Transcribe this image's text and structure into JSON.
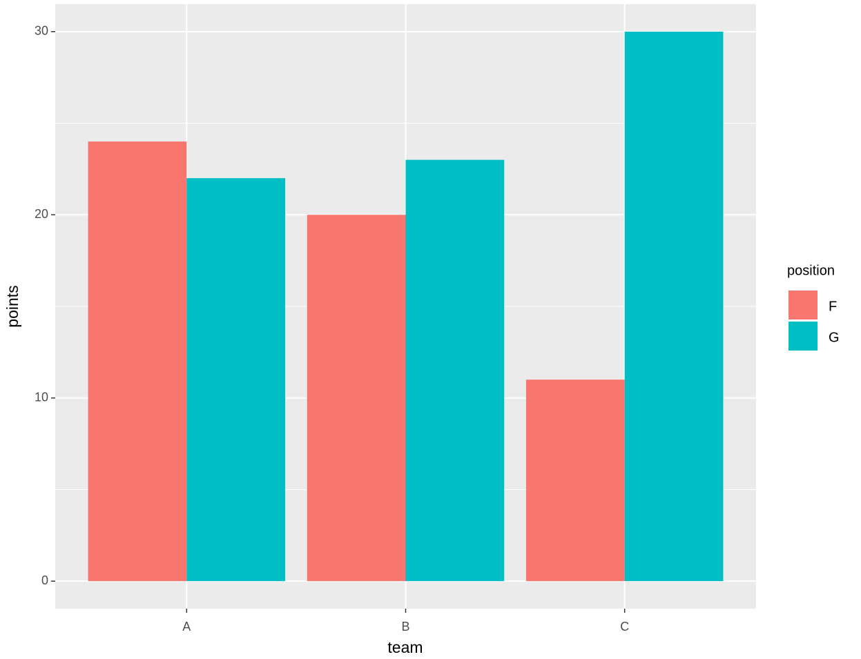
{
  "chart_data": {
    "type": "bar",
    "x_label": "team",
    "y_label": "points",
    "legend_title": "position",
    "categories": [
      "A",
      "B",
      "C"
    ],
    "series": [
      {
        "name": "F",
        "color": "#f8766d",
        "values": [
          24,
          20,
          11
        ]
      },
      {
        "name": "G",
        "color": "#00bfc4",
        "values": [
          22,
          23,
          30
        ]
      }
    ],
    "ylim": [
      -1.5,
      31.5
    ],
    "yticks": [
      0,
      10,
      20,
      30
    ],
    "y_minor_grid": [
      5,
      15,
      25
    ],
    "grid": true,
    "panel_color": "#ebebeb",
    "grid_color": "#ffffff",
    "legend_position": "right"
  }
}
